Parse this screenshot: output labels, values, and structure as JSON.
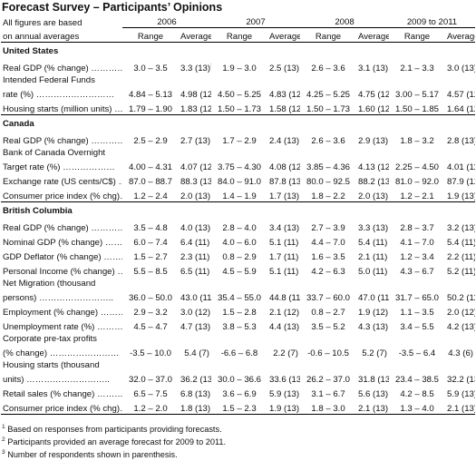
{
  "title": "Forecast Survey – Participants’ Opinions",
  "header": {
    "line1": "All figures are based",
    "line2": "on annual averages",
    "years": [
      "2006",
      "2007",
      "2008",
      "2009 to 2011"
    ],
    "range": "Range",
    "average": "Average",
    "avg_sups": [
      "1",
      "1",
      "1",
      "2"
    ]
  },
  "sections": [
    {
      "name": "United States",
      "rows": [
        {
          "label": "Real GDP (% change) …………",
          "cells": [
            "3.0 – 3.5",
            "3.3 (13)",
            "1.9 – 3.0",
            "2.5 (13)",
            "2.6 – 3.6",
            "3.1 (13)",
            "2.1 – 3.3",
            "3.0 (13)"
          ],
          "sup0": "3"
        },
        {
          "label": "Intended Federal Funds",
          "label2": "rate (%) ………………………",
          "cells": [
            "4.84 – 5.13",
            "4.98 (12)",
            "4.50 – 5.25",
            "4.83 (12)",
            "4.25 – 5.25",
            "4.75 (12)",
            "3.00 – 5.17",
            "4.57 (12)"
          ]
        },
        {
          "label": "Housing starts (million units) …..",
          "cells": [
            "1.79 – 1.90",
            "1.83 (12)",
            "1.50 – 1.73",
            "1.58 (12)",
            "1.50 – 1.73",
            "1.60 (12)",
            "1.50 – 1.85",
            "1.64 (12)"
          ]
        }
      ]
    },
    {
      "name": "Canada",
      "rows": [
        {
          "label": "Real GDP (% change) …………",
          "cells": [
            "2.5 – 2.9",
            "2.7 (13)",
            "1.7 – 2.9",
            "2.4 (13)",
            "2.6 – 3.6",
            "2.9 (13)",
            "1.8 – 3.2",
            "2.8 (13)"
          ]
        },
        {
          "label": "Bank of Canada Overnight",
          "label2": "Target rate (%) ………………",
          "cells": [
            "4.00 – 4.31",
            "4.07 (12)",
            "3.75 – 4.30",
            "4.08 (12)",
            "3.85 – 4.36",
            "4.13 (12)",
            "2.25 – 4.50",
            "4.01 (11)"
          ]
        },
        {
          "label": "Exchange rate (US cents/C$) ….",
          "cells": [
            "87.0 – 88.7",
            "88.3 (13)",
            "84.0 – 91.0",
            "87.8 (13)",
            "80.0 – 92.5",
            "88.2 (13)",
            "81.0 – 92.0",
            "87.9 (12)"
          ]
        },
        {
          "label": "Consumer price index (% chg)…",
          "cells": [
            "1.2 – 2.4",
            "2.0 (13)",
            "1.4 – 1.9",
            "1.7 (13)",
            "1.8 – 2.2",
            "2.0 (13)",
            "1.2 – 2.1",
            "1.9 (13)"
          ]
        }
      ]
    },
    {
      "name": "British Columbia",
      "rows": [
        {
          "label": "Real GDP (% change) …………",
          "cells": [
            "3.5 – 4.8",
            "4.0 (13)",
            "2.8 – 4.0",
            "3.4 (13)",
            "2.7 – 3.9",
            "3.3 (13)",
            "2.8 – 3.7",
            "3.2 (13)"
          ]
        },
        {
          "label": "Nominal GDP (% change) ……..",
          "cells": [
            "6.0 – 7.4",
            "6.4 (11)",
            "4.0 – 6.0",
            "5.1 (11)",
            "4.4 – 7.0",
            "5.4 (11)",
            "4.1 – 7.0",
            "5.4 (11)"
          ]
        },
        {
          "label": "GDP Deflator (% change) ……..",
          "cells": [
            "1.5 – 2.7",
            "2.3 (11)",
            "0.8 – 2.9",
            "1.7 (11)",
            "1.6 – 3.5",
            "2.1 (11)",
            "1.2 – 3.4",
            "2.2 (11)"
          ]
        },
        {
          "label": "Personal Income (% change) …",
          "cells": [
            "5.5 – 8.5",
            "6.5 (11)",
            "4.5 – 5.9",
            "5.1 (11)",
            "4.2 – 6.3",
            "5.0 (11)",
            "4.3 – 6.7",
            "5.2 (11)"
          ]
        },
        {
          "label": "Net Migration (thousand",
          "label2": "persons) ……………………..",
          "cells": [
            "36.0 – 50.0",
            "43.0 (11)",
            "35.4 – 55.0",
            "44.8 (11)",
            "33.7 – 60.0",
            "47.0 (11)",
            "31.7 – 65.0",
            "50.2 (11)"
          ]
        },
        {
          "label": "Employment (% change) ………",
          "cells": [
            "2.9 – 3.2",
            "3.0 (12)",
            "1.5 – 2.8",
            "2.1 (12)",
            "0.8 – 2.7",
            "1.9 (12)",
            "1.1 – 3.5",
            "2.0 (12)"
          ]
        },
        {
          "label": "Unemployment rate (%) ………",
          "cells": [
            "4.5 – 4.7",
            "4.7 (13)",
            "3.8 – 5.3",
            "4.4 (13)",
            "3.5 – 5.2",
            "4.3 (13)",
            "3.4 – 5.5",
            "4.2 (13)"
          ]
        },
        {
          "label": "Corporate pre-tax profits",
          "label2": "(% change) ……………………",
          "cells": [
            "-3.5 – 10.0",
            "5.4 (7)",
            "-6.6 – 6.8",
            "2.2 (7)",
            "-0.6 – 10.5",
            "5.2 (7)",
            "-3.5 – 6.4",
            "4.3 (6)"
          ]
        },
        {
          "label": "Housing starts (thousand",
          "label2": "units) ………………………..",
          "cells": [
            "32.0 – 37.0",
            "36.2 (13)",
            "30.0 – 36.6",
            "33.6 (13)",
            "26.2 – 37.0",
            "31.8 (13)",
            "23.4 – 38.5",
            "32.2 (13)"
          ]
        },
        {
          "label": "Retail sales (% change) ………",
          "cells": [
            "6.5 – 7.5",
            "6.8 (13)",
            "3.6 – 6.9",
            "5.9 (13)",
            "3.1 – 6.7",
            "5.6 (13)",
            "4.2 – 8.5",
            "5.9 (13)"
          ]
        },
        {
          "label": "Consumer price index (% chg)…",
          "cells": [
            "1.2 – 2.0",
            "1.8 (13)",
            "1.5 – 2.3",
            "1.9 (13)",
            "1.8 – 3.0",
            "2.1 (13)",
            "1.3 – 4.0",
            "2.1 (13)"
          ]
        }
      ]
    }
  ],
  "footnotes": [
    {
      "sup": "1",
      "text": "Based on responses from participants providing forecasts."
    },
    {
      "sup": "2",
      "text": "Participants provided an average forecast for 2009 to 2011."
    },
    {
      "sup": "3",
      "text": "Number of respondents shown in parenthesis."
    }
  ]
}
